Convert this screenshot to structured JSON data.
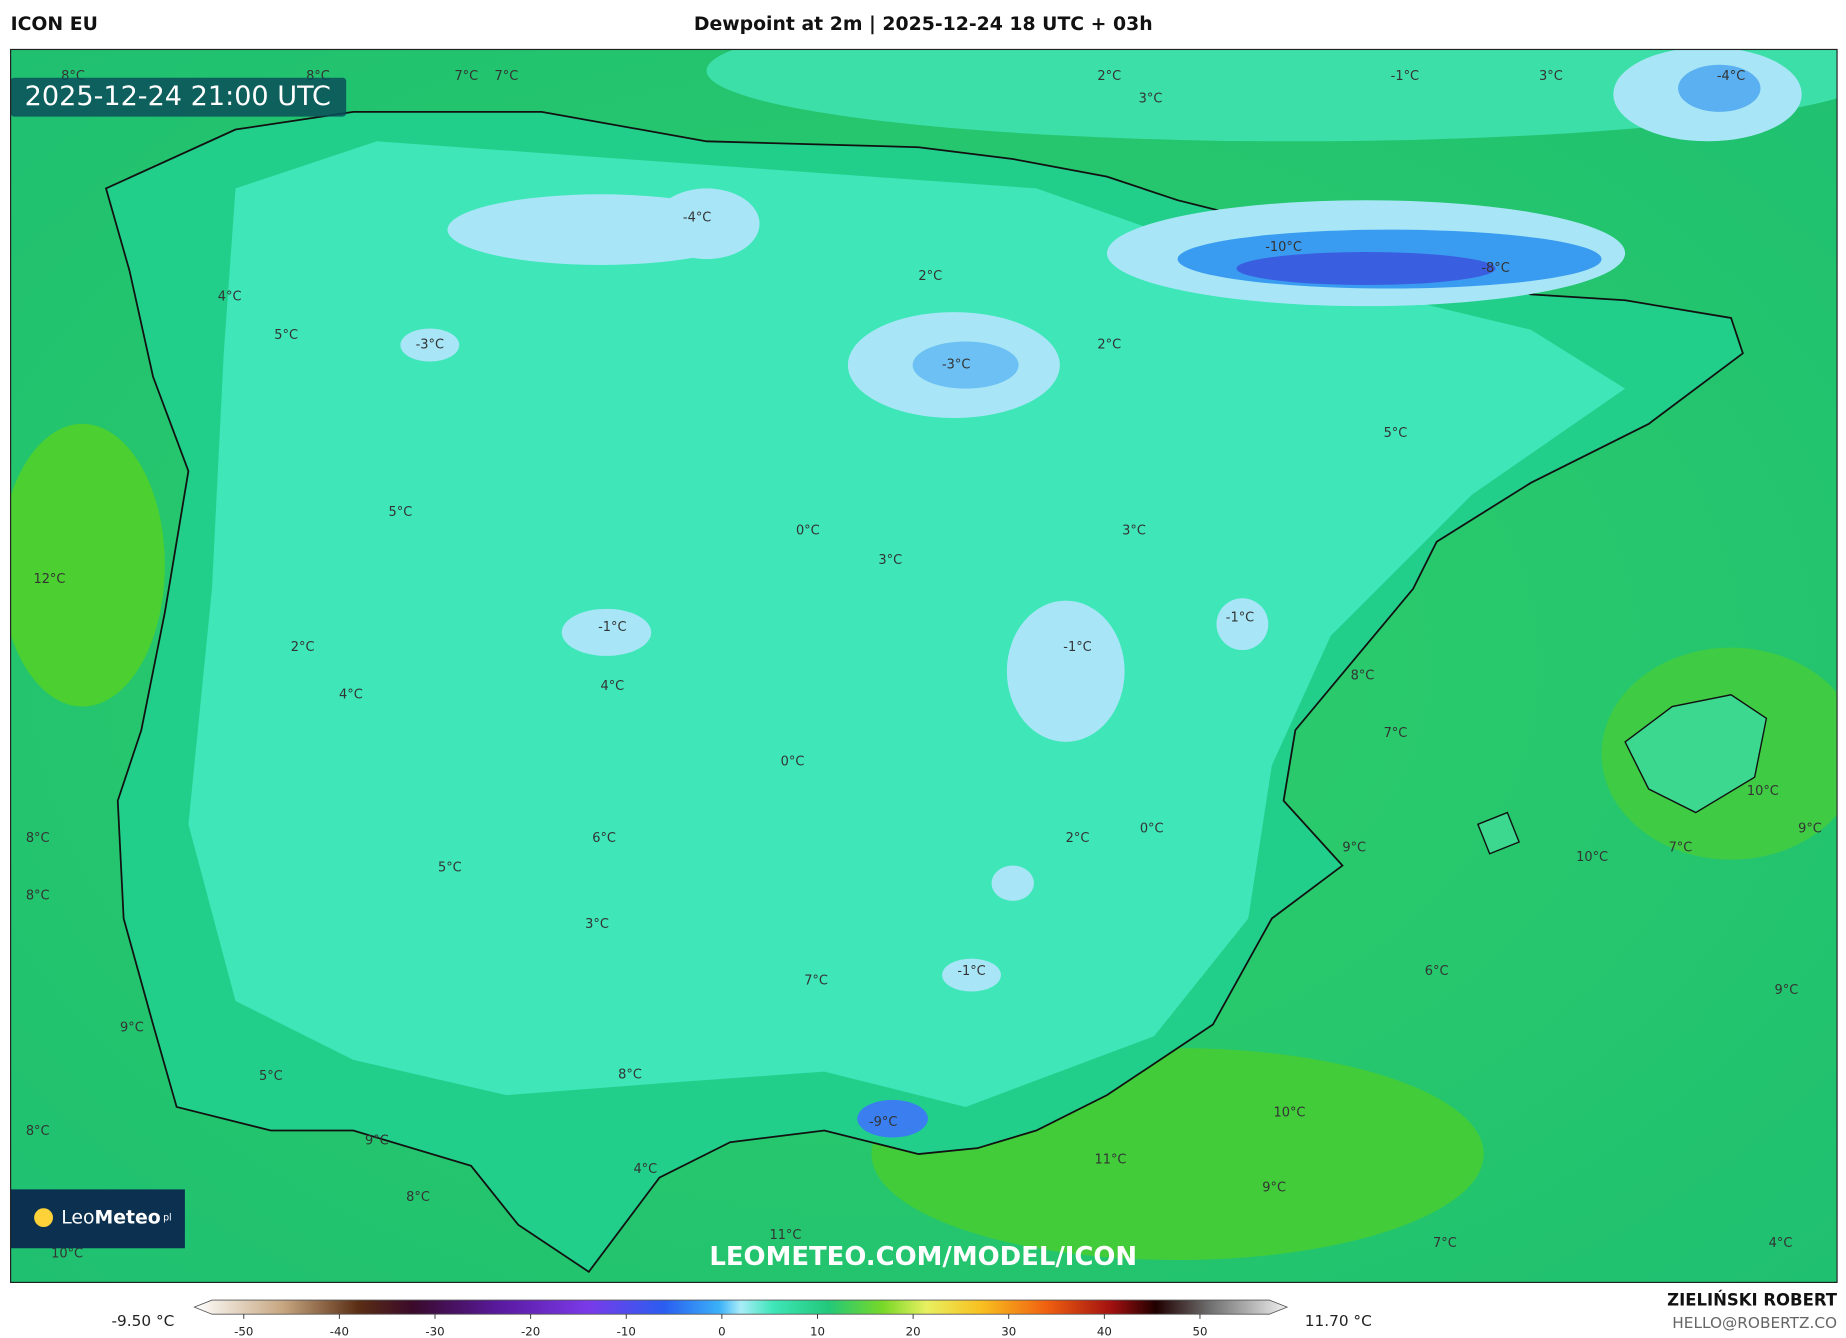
{
  "header": {
    "model": "ICON EU",
    "title": "Dewpoint at 2m | 2025-12-24 18 UTC + 03h",
    "valid_time": "2025-12-24 21:00 UTC"
  },
  "map": {
    "labels": [
      "8°C",
      "8°C",
      "7°C",
      "7°C",
      "2°C",
      "3°C",
      "-1°C",
      "3°C",
      "-4°C",
      "-4°C",
      "-10°C",
      "-8°C",
      "2°C",
      "4°C",
      "5°C",
      "-3°C",
      "2°C",
      "-3°C",
      "5°C",
      "5°C",
      "0°C",
      "3°C",
      "3°C",
      "12°C",
      "-1°C",
      "-1°C",
      "2°C",
      "-1°C",
      "8°C",
      "4°C",
      "4°C",
      "7°C",
      "0°C",
      "10°C",
      "0°C",
      "9°C",
      "8°C",
      "6°C",
      "2°C",
      "9°C",
      "7°C",
      "10°C",
      "5°C",
      "8°C",
      "3°C",
      "6°C",
      "-1°C",
      "7°C",
      "9°C",
      "9°C",
      "5°C",
      "8°C",
      "10°C",
      "-9°C",
      "8°C",
      "9°C",
      "11°C",
      "4°C",
      "9°C",
      "8°C",
      "11°C",
      "7°C",
      "4°C",
      "10°C"
    ]
  },
  "watermark": "LEOMETEO.COM/MODEL/ICON",
  "logo": {
    "light": "Leo",
    "bold": "Meteo",
    "suffix": "pl"
  },
  "colorbar": {
    "min_label": "-9.50 °C",
    "max_label": "11.70 °C",
    "ticks": [
      -50,
      -40,
      -30,
      -20,
      -10,
      0,
      10,
      20,
      30,
      40,
      50
    ]
  },
  "footer": {
    "author": "ZIELIŃSKI ROBERT",
    "email": "HELLO@ROBERTZ.CO"
  }
}
